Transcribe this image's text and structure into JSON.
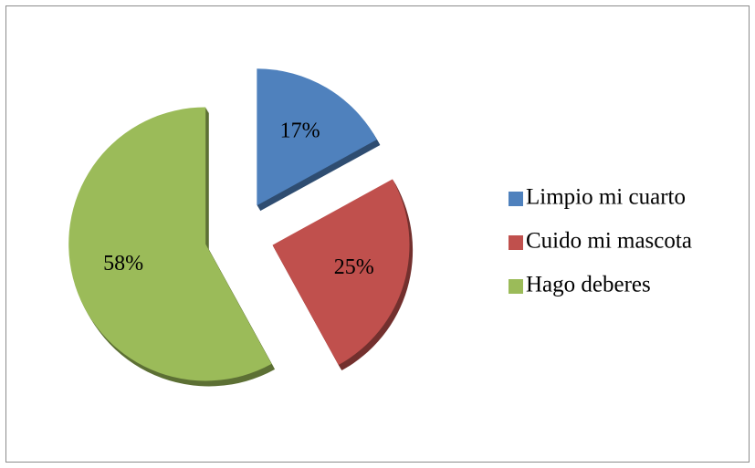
{
  "chart_data": {
    "type": "pie",
    "categories": [
      "Limpio mi cuarto",
      "Cuido mi mascota",
      "Hago deberes"
    ],
    "values": [
      17,
      25,
      58
    ],
    "value_labels": [
      "17%",
      "25%",
      "58%"
    ],
    "colors": [
      "#4f81bd",
      "#c0504d",
      "#9bbb59"
    ],
    "exploded": true,
    "legend": "right"
  }
}
